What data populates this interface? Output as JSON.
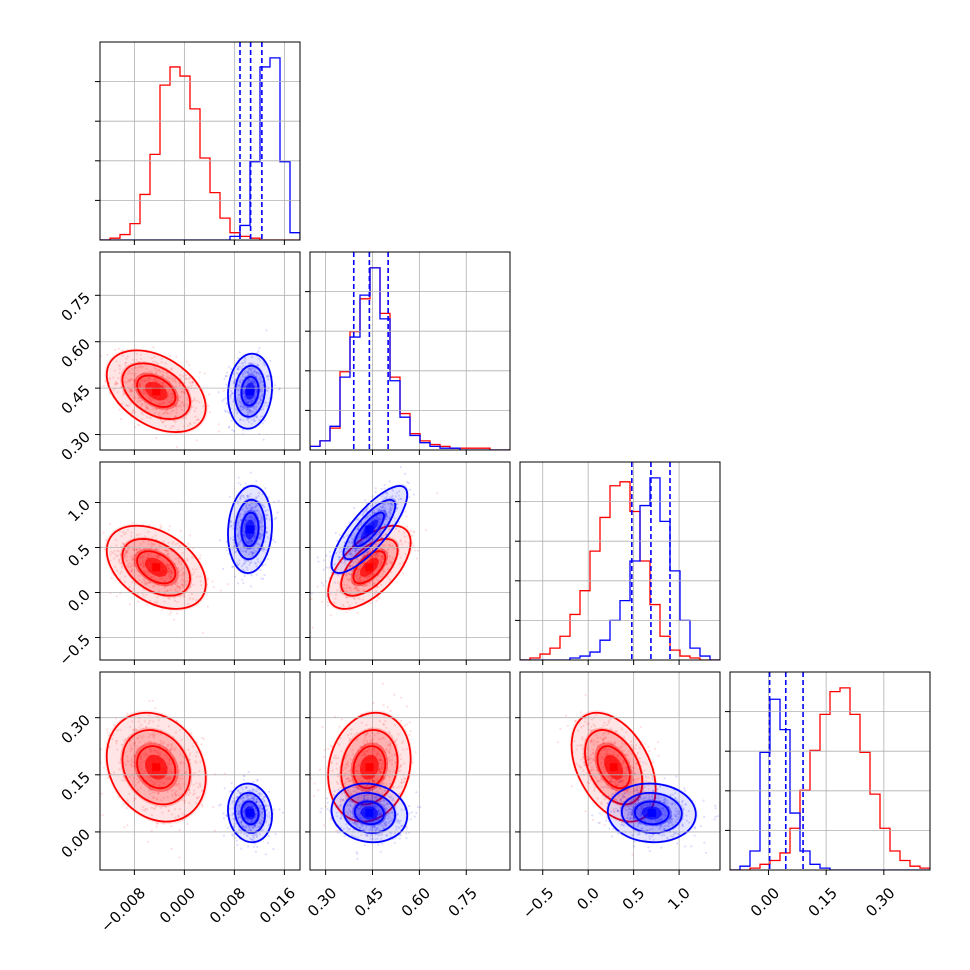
{
  "colors": {
    "red": "#ff0000",
    "blue": "#0000ff",
    "grid": "#b0b0b0",
    "axes": "#000000"
  },
  "chart_data": {
    "type": "corner",
    "title": "",
    "n_params": 4,
    "grid": true,
    "param_ranges": [
      [
        -0.0135,
        0.0185
      ],
      [
        0.25,
        0.89
      ],
      [
        -0.75,
        1.45
      ],
      [
        -0.1,
        0.42
      ]
    ],
    "tick_labels": [
      [
        "−0.008",
        "0.000",
        "0.008",
        "0.016"
      ],
      [
        "0.30",
        "0.45",
        "0.60",
        "0.75"
      ],
      [
        "−0.5",
        "0.0",
        "0.5",
        "1.0"
      ],
      [
        "0.00",
        "0.15",
        "0.30"
      ]
    ],
    "tick_values": [
      [
        -0.008,
        0.0,
        0.008,
        0.016
      ],
      [
        0.3,
        0.45,
        0.6,
        0.75
      ],
      [
        -0.5,
        0.0,
        0.5,
        1.0
      ],
      [
        0.0,
        0.15,
        0.3
      ]
    ],
    "series": [
      {
        "color": "red",
        "means": [
          -0.0045,
          0.44,
          0.28,
          0.17
        ],
        "sds": [
          0.0036,
          0.06,
          0.21,
          0.065
        ],
        "correlations": {
          "0-1": -0.4,
          "0-2": -0.4,
          "0-3": -0.2,
          "1-2": 0.6,
          "1-3": 0.15,
          "2-3": -0.4
        },
        "histograms": [
          {
            "edges": [
              -0.0135,
              0.0185
            ],
            "counts": [
              0,
              0.01,
              0.03,
              0.09,
              0.25,
              0.47,
              0.85,
              0.95,
              0.9,
              0.72,
              0.45,
              0.26,
              0.12,
              0.04,
              0.02,
              0.01,
              0,
              0,
              0,
              0
            ]
          },
          {
            "edges": [
              0.25,
              0.89
            ],
            "counts": [
              0.02,
              0.05,
              0.12,
              0.43,
              0.65,
              0.83,
              1.0,
              0.75,
              0.4,
              0.2,
              0.09,
              0.05,
              0.03,
              0.02,
              0.01,
              0.01,
              0.01,
              0.01,
              0,
              0
            ]
          },
          {
            "edges": [
              -0.75,
              1.45
            ],
            "counts": [
              0,
              0.01,
              0.03,
              0.06,
              0.12,
              0.23,
              0.35,
              0.55,
              0.72,
              0.88,
              0.9,
              0.75,
              0.5,
              0.28,
              0.12,
              0.05,
              0.02,
              0.01,
              0,
              0
            ]
          },
          {
            "edges": [
              -0.1,
              0.42
            ],
            "counts": [
              0,
              0,
              0.01,
              0.03,
              0.05,
              0.09,
              0.22,
              0.42,
              0.63,
              0.82,
              0.94,
              0.96,
              0.82,
              0.62,
              0.4,
              0.22,
              0.1,
              0.05,
              0.02,
              0.01
            ]
          }
        ]
      },
      {
        "color": "blue",
        "means": [
          0.0105,
          0.44,
          0.7,
          0.05
        ],
        "sds": [
          0.0016,
          0.055,
          0.22,
          0.035
        ],
        "correlations": {
          "0-1": 0.1,
          "0-2": 0.1,
          "0-3": -0.1,
          "1-2": 0.8,
          "1-3": -0.1,
          "2-3": -0.05
        },
        "quantiles": [
          [
            0.0089,
            0.0106,
            0.0124
          ],
          [
            0.39,
            0.44,
            0.5
          ],
          [
            0.48,
            0.69,
            0.9
          ],
          [
            0.003,
            0.045,
            0.09
          ]
        ],
        "histograms": [
          {
            "edges": [
              -0.0135,
              0.0185
            ],
            "counts": [
              0,
              0,
              0,
              0,
              0,
              0,
              0,
              0,
              0,
              0,
              0,
              0,
              0,
              0.02,
              0.08,
              0.43,
              0.95,
              1.0,
              0.43,
              0.04
            ]
          },
          {
            "edges": [
              0.25,
              0.89
            ],
            "counts": [
              0.02,
              0.05,
              0.13,
              0.4,
              0.62,
              0.85,
              1.0,
              0.72,
              0.38,
              0.18,
              0.08,
              0.04,
              0.02,
              0.01,
              0.01,
              0,
              0,
              0,
              0,
              0
            ]
          },
          {
            "edges": [
              -0.75,
              1.45
            ],
            "counts": [
              0,
              0,
              0,
              0,
              0,
              0.01,
              0.02,
              0.04,
              0.1,
              0.2,
              0.3,
              0.5,
              0.78,
              0.92,
              0.7,
              0.45,
              0.2,
              0.06,
              0.02,
              0
            ]
          },
          {
            "edges": [
              -0.1,
              0.42
            ],
            "counts": [
              0,
              0.02,
              0.1,
              0.62,
              0.9,
              0.74,
              0.3,
              0.1,
              0.03,
              0.01,
              0,
              0,
              0,
              0,
              0,
              0,
              0,
              0,
              0,
              0
            ]
          }
        ]
      }
    ]
  }
}
